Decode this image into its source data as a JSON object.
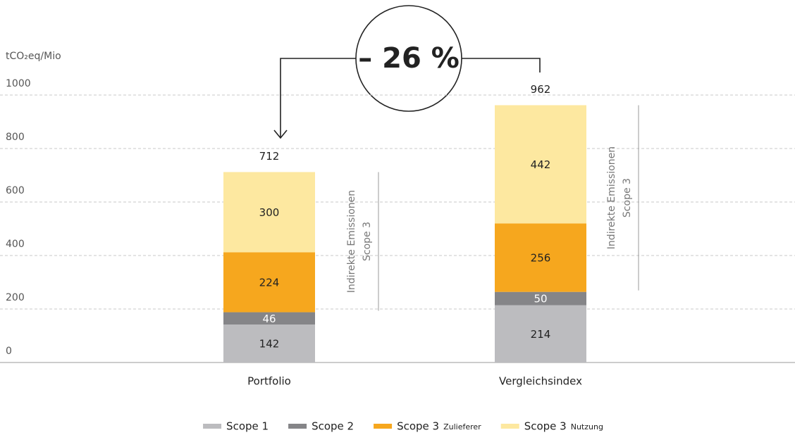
{
  "chart_data": {
    "type": "stacked_bar",
    "y_label": "tCO₂eq/Mio",
    "categories": [
      "Portfolio",
      "Vergleichsindex"
    ],
    "series": [
      {
        "name": "Scope 1",
        "color": "#bcbcbf",
        "values": [
          142,
          214
        ]
      },
      {
        "name": "Scope 2",
        "color": "#858588",
        "values": [
          46,
          50
        ]
      },
      {
        "name": "Scope 3",
        "name_suffix": "Zulieferer",
        "color": "#f6a71e",
        "values": [
          224,
          256
        ]
      },
      {
        "name": "Scope 3",
        "name_suffix": "Nutzung",
        "color": "#fde8a0",
        "values": [
          300,
          442
        ]
      }
    ],
    "totals": [
      712,
      962
    ],
    "ylim": [
      0,
      1000
    ],
    "yticks": [
      0,
      200,
      400,
      600,
      800,
      1000
    ],
    "grid": true,
    "bracket_label": [
      "Indirekte Emissionen",
      "Scope 3"
    ],
    "annotation": "– 26 %"
  }
}
